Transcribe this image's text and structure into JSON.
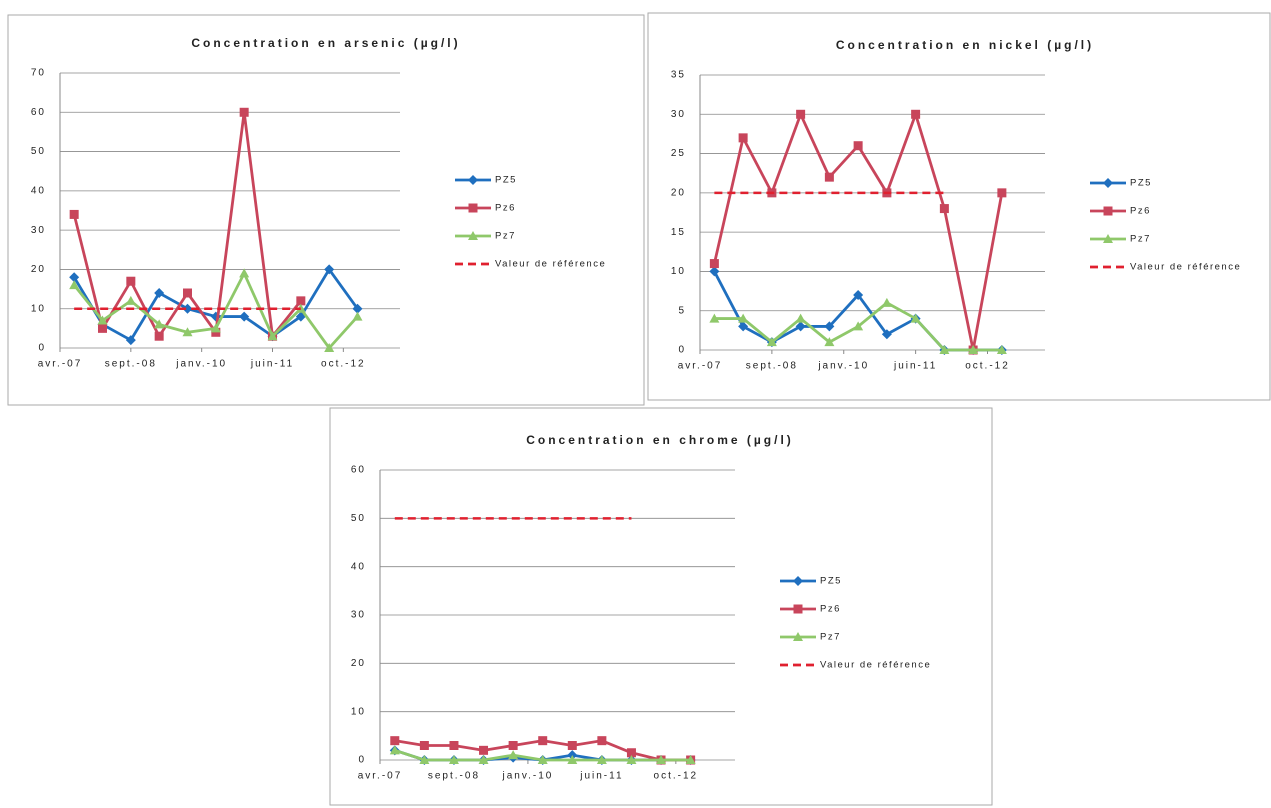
{
  "chart_data": [
    {
      "type": "line",
      "title": "Concentration en arsenic (µg/l)",
      "categories": [
        null,
        null,
        null,
        null,
        null,
        null,
        null,
        null,
        null,
        null,
        null
      ],
      "xlim": [
        -0.5,
        11.5
      ],
      "xticks": [
        {
          "value": -0.5,
          "label": "avr.-07"
        },
        {
          "value": 2,
          "label": "sept.-08"
        },
        {
          "value": 4.5,
          "label": "janv.-10"
        },
        {
          "value": 7,
          "label": "juin-11"
        },
        {
          "value": 9.5,
          "label": "oct.-12"
        }
      ],
      "ylim": [
        0,
        70
      ],
      "yticks": [
        0,
        10,
        20,
        30,
        40,
        50,
        60,
        70
      ],
      "grid": true,
      "legend": "right",
      "series": [
        {
          "name": "PZ5",
          "color": "#1f6fbf",
          "marker": "diamond",
          "values": [
            18,
            6,
            2,
            14,
            10,
            8,
            8,
            3,
            8,
            20,
            10
          ]
        },
        {
          "name": "Pz6",
          "color": "#c8455b",
          "marker": "square",
          "values": [
            34,
            5,
            17,
            3,
            14,
            4,
            60,
            3,
            12,
            null,
            null
          ]
        },
        {
          "name": "Pz7",
          "color": "#8fc86a",
          "marker": "triangle",
          "values": [
            16,
            7,
            12,
            6,
            4,
            5,
            19,
            3,
            10,
            0,
            8
          ]
        },
        {
          "name": "Valeur de référence",
          "color": "#e0202f",
          "dashed": true,
          "values": [
            10,
            10,
            10,
            10,
            10,
            10,
            10,
            10,
            10,
            null,
            null
          ]
        }
      ]
    },
    {
      "type": "line",
      "title": "Concentration en nickel (µg/l)",
      "categories": [
        null,
        null,
        null,
        null,
        null,
        null,
        null,
        null,
        null,
        null,
        null
      ],
      "xlim": [
        -0.5,
        11.5
      ],
      "xticks": [
        {
          "value": -0.5,
          "label": "avr.-07"
        },
        {
          "value": 2,
          "label": "sept.-08"
        },
        {
          "value": 4.5,
          "label": "janv.-10"
        },
        {
          "value": 7,
          "label": "juin-11"
        },
        {
          "value": 9.5,
          "label": "oct.-12"
        }
      ],
      "ylim": [
        0,
        35
      ],
      "yticks": [
        0,
        5,
        10,
        15,
        20,
        25,
        30,
        35
      ],
      "grid": true,
      "legend": "right",
      "series": [
        {
          "name": "PZ5",
          "color": "#1f6fbf",
          "marker": "diamond",
          "values": [
            10,
            3,
            1,
            3,
            3,
            7,
            2,
            4,
            0,
            0,
            0
          ]
        },
        {
          "name": "Pz6",
          "color": "#c8455b",
          "marker": "square",
          "values": [
            11,
            27,
            20,
            30,
            22,
            26,
            20,
            30,
            18,
            0,
            20
          ]
        },
        {
          "name": "Pz7",
          "color": "#8fc86a",
          "marker": "triangle",
          "values": [
            4,
            4,
            1,
            4,
            1,
            3,
            6,
            4,
            0,
            0,
            0
          ]
        },
        {
          "name": "Valeur de référence",
          "color": "#e0202f",
          "dashed": true,
          "values": [
            20,
            20,
            20,
            20,
            20,
            20,
            20,
            20,
            20,
            null,
            null
          ]
        }
      ]
    },
    {
      "type": "line",
      "title": "Concentration en chrome (µg/l)",
      "categories": [
        null,
        null,
        null,
        null,
        null,
        null,
        null,
        null,
        null,
        null,
        null
      ],
      "xlim": [
        -0.5,
        11.5
      ],
      "xticks": [
        {
          "value": -0.5,
          "label": "avr.-07"
        },
        {
          "value": 2,
          "label": "sept.-08"
        },
        {
          "value": 4.5,
          "label": "janv.-10"
        },
        {
          "value": 7,
          "label": "juin-11"
        },
        {
          "value": 9.5,
          "label": "oct.-12"
        }
      ],
      "ylim": [
        0,
        60
      ],
      "yticks": [
        0,
        10,
        20,
        30,
        40,
        50,
        60
      ],
      "grid": true,
      "legend": "right",
      "series": [
        {
          "name": "PZ5",
          "color": "#1f6fbf",
          "marker": "diamond",
          "values": [
            2,
            0,
            0,
            0,
            0.5,
            0,
            1,
            0,
            0,
            0,
            0
          ]
        },
        {
          "name": "Pz6",
          "color": "#c8455b",
          "marker": "square",
          "values": [
            4,
            3,
            3,
            2,
            3,
            4,
            3,
            4,
            1.5,
            0,
            0
          ]
        },
        {
          "name": "Pz7",
          "color": "#8fc86a",
          "marker": "triangle",
          "values": [
            2,
            0,
            0,
            0,
            1,
            0,
            0,
            0,
            0,
            0,
            0
          ]
        },
        {
          "name": "Valeur de référence",
          "color": "#e0202f",
          "dashed": true,
          "values": [
            50,
            50,
            50,
            50,
            50,
            50,
            50,
            50,
            50,
            null,
            null
          ]
        }
      ]
    }
  ]
}
